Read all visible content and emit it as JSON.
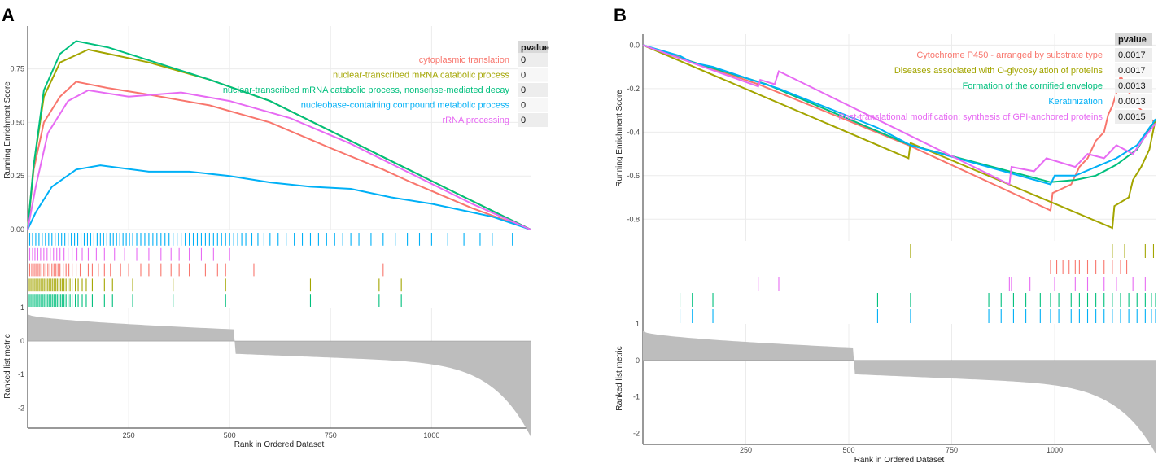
{
  "figure": {
    "panel_labels": [
      "A",
      "B"
    ]
  },
  "chart_data": [
    {
      "panel": "A",
      "type": "line",
      "title": "",
      "xlabel": "Rank in Ordered Dataset",
      "ylabel_top": "Running Enrichment Score",
      "ylabel_bottom": "Ranked list metric",
      "xlim": [
        0,
        1245
      ],
      "x_ticks": [
        "250",
        "500",
        "750",
        "1000"
      ],
      "x_tick_values": [
        250,
        500,
        750,
        1000
      ],
      "ylim_top": [
        0,
        0.95
      ],
      "y_ticks_top": [
        "0.00",
        "0.25",
        "0.50",
        "0.75"
      ],
      "y_tick_values_top": [
        0,
        0.25,
        0.5,
        0.75
      ],
      "ylim_bottom": [
        -2.6,
        1.0
      ],
      "y_ticks_bottom": [
        "1",
        "0",
        "-1",
        "-2"
      ],
      "y_tick_values_bottom": [
        1,
        0,
        -1,
        -2
      ],
      "pvalue_header": "pvalue",
      "series": [
        {
          "name": "cytoplasmic translation",
          "color": "#F8766D",
          "pvalue": "0",
          "points": [
            [
              0,
              0
            ],
            [
              15,
              0.28
            ],
            [
              40,
              0.5
            ],
            [
              80,
              0.62
            ],
            [
              120,
              0.69
            ],
            [
              200,
              0.66
            ],
            [
              300,
              0.63
            ],
            [
              450,
              0.58
            ],
            [
              600,
              0.5
            ],
            [
              750,
              0.38
            ],
            [
              880,
              0.28
            ],
            [
              950,
              0.22
            ],
            [
              1100,
              0.1
            ],
            [
              1245,
              0
            ]
          ],
          "hits": [
            5,
            10,
            14,
            18,
            22,
            26,
            30,
            35,
            40,
            45,
            50,
            55,
            60,
            65,
            70,
            75,
            80,
            88,
            95,
            102,
            110,
            120,
            130,
            150,
            160,
            175,
            190,
            205,
            230,
            250,
            280,
            300,
            330,
            355,
            375,
            400,
            440,
            470,
            490,
            560,
            880
          ]
        },
        {
          "name": "nuclear-transcribed mRNA catabolic process",
          "color": "#A3A500",
          "pvalue": "0",
          "points": [
            [
              0,
              0
            ],
            [
              15,
              0.3
            ],
            [
              40,
              0.62
            ],
            [
              80,
              0.78
            ],
            [
              150,
              0.84
            ],
            [
              300,
              0.78
            ],
            [
              450,
              0.7
            ],
            [
              600,
              0.6
            ],
            [
              750,
              0.46
            ],
            [
              900,
              0.32
            ],
            [
              1050,
              0.18
            ],
            [
              1245,
              0
            ]
          ],
          "hits": [
            2,
            6,
            10,
            14,
            18,
            22,
            26,
            30,
            34,
            38,
            42,
            46,
            50,
            54,
            58,
            62,
            66,
            70,
            74,
            78,
            82,
            86,
            90,
            95,
            100,
            105,
            110,
            118,
            125,
            135,
            145,
            160,
            190,
            210,
            260,
            360,
            490,
            700,
            870,
            925
          ]
        },
        {
          "name": "nuclear-transcribed mRNA catabolic process, nonsense-mediated decay",
          "color": "#00BF7D",
          "pvalue": "0",
          "points": [
            [
              0,
              0
            ],
            [
              15,
              0.3
            ],
            [
              40,
              0.65
            ],
            [
              80,
              0.82
            ],
            [
              120,
              0.88
            ],
            [
              200,
              0.85
            ],
            [
              300,
              0.79
            ],
            [
              450,
              0.7
            ],
            [
              600,
              0.6
            ],
            [
              750,
              0.46
            ],
            [
              900,
              0.32
            ],
            [
              1050,
              0.18
            ],
            [
              1245,
              0
            ]
          ],
          "hits": [
            2,
            6,
            10,
            14,
            18,
            22,
            26,
            30,
            34,
            38,
            42,
            46,
            50,
            54,
            58,
            62,
            66,
            70,
            74,
            78,
            82,
            86,
            90,
            95,
            100,
            105,
            110,
            118,
            125,
            135,
            145,
            160,
            190,
            210,
            260,
            360,
            490,
            700,
            870,
            925
          ]
        },
        {
          "name": "nucleobase-containing compound metabolic process",
          "color": "#00B0F6",
          "pvalue": "0",
          "points": [
            [
              0,
              0
            ],
            [
              20,
              0.08
            ],
            [
              60,
              0.2
            ],
            [
              120,
              0.28
            ],
            [
              180,
              0.3
            ],
            [
              300,
              0.27
            ],
            [
              400,
              0.27
            ],
            [
              500,
              0.25
            ],
            [
              600,
              0.22
            ],
            [
              700,
              0.2
            ],
            [
              800,
              0.19
            ],
            [
              900,
              0.15
            ],
            [
              1000,
              0.12
            ],
            [
              1100,
              0.08
            ],
            [
              1150,
              0.06
            ],
            [
              1245,
              0
            ]
          ],
          "hits": [
            5,
            12,
            20,
            28,
            36,
            44,
            52,
            60,
            68,
            76,
            84,
            92,
            100,
            108,
            116,
            124,
            132,
            140,
            148,
            156,
            164,
            172,
            180,
            188,
            196,
            204,
            212,
            220,
            228,
            236,
            244,
            252,
            260,
            270,
            280,
            290,
            300,
            310,
            320,
            330,
            340,
            350,
            360,
            370,
            380,
            390,
            400,
            410,
            420,
            430,
            440,
            450,
            460,
            470,
            480,
            490,
            500,
            510,
            520,
            530,
            540,
            555,
            570,
            585,
            600,
            620,
            640,
            660,
            680,
            700,
            720,
            740,
            760,
            780,
            800,
            820,
            850,
            880,
            910,
            940,
            970,
            1000,
            1040,
            1080,
            1120,
            1150,
            1200
          ]
        },
        {
          "name": "rRNA processing",
          "color": "#E76BF3",
          "pvalue": "0",
          "points": [
            [
              0,
              0
            ],
            [
              20,
              0.2
            ],
            [
              50,
              0.45
            ],
            [
              100,
              0.6
            ],
            [
              150,
              0.65
            ],
            [
              250,
              0.62
            ],
            [
              380,
              0.64
            ],
            [
              500,
              0.6
            ],
            [
              650,
              0.52
            ],
            [
              800,
              0.4
            ],
            [
              950,
              0.26
            ],
            [
              1100,
              0.12
            ],
            [
              1245,
              0
            ]
          ],
          "hits": [
            5,
            12,
            18,
            25,
            32,
            40,
            48,
            56,
            64,
            72,
            80,
            90,
            100,
            110,
            122,
            135,
            150,
            170,
            190,
            215,
            240,
            270,
            300,
            330,
            355,
            375,
            400,
            430,
            460,
            500
          ]
        }
      ],
      "ranked_metric": {
        "start": 0.8,
        "pre_split": 0.35,
        "post_split": -0.38,
        "split_x": 515,
        "end": -2.5
      }
    },
    {
      "panel": "B",
      "type": "line",
      "title": "",
      "xlabel": "Rank in Ordered Dataset",
      "ylabel_top": "Running Enrichment Score",
      "ylabel_bottom": "Ranked list metric",
      "xlim": [
        0,
        1245
      ],
      "x_ticks": [
        "250",
        "500",
        "750",
        "1000"
      ],
      "x_tick_values": [
        250,
        500,
        750,
        1000
      ],
      "ylim_top": [
        -0.9,
        0.05
      ],
      "y_ticks_top": [
        "0.0",
        "-0.2",
        "-0.4",
        "-0.6",
        "-0.8"
      ],
      "y_tick_values_top": [
        0,
        -0.2,
        -0.4,
        -0.6,
        -0.8
      ],
      "ylim_bottom": [
        -2.3,
        1.0
      ],
      "y_ticks_bottom": [
        "1",
        "0",
        "-1",
        "-2"
      ],
      "y_tick_values_bottom": [
        1,
        0,
        -1,
        -2
      ],
      "pvalue_header": "pvalue",
      "series": [
        {
          "name": "Cytochrome P450 - arranged by substrate type",
          "color": "#F8766D",
          "pvalue": "0.0017",
          "points": [
            [
              0,
              0
            ],
            [
              280,
              -0.18
            ],
            [
              645,
              -0.46
            ],
            [
              990,
              -0.76
            ],
            [
              995,
              -0.68
            ],
            [
              1040,
              -0.64
            ],
            [
              1060,
              -0.56
            ],
            [
              1080,
              -0.52
            ],
            [
              1100,
              -0.44
            ],
            [
              1120,
              -0.4
            ],
            [
              1130,
              -0.32
            ],
            [
              1140,
              -0.28
            ],
            [
              1150,
              -0.22
            ],
            [
              1160,
              -0.14
            ],
            [
              1175,
              -0.2
            ],
            [
              1200,
              -0.28
            ],
            [
              1245,
              -0.36
            ]
          ],
          "hits": [
            990,
            1005,
            1020,
            1035,
            1050,
            1060,
            1080,
            1100,
            1120,
            1140,
            1160,
            1175
          ]
        },
        {
          "name": "Diseases associated with O-glycosylation of proteins",
          "color": "#A3A500",
          "pvalue": "0.0017",
          "points": [
            [
              0,
              0
            ],
            [
              645,
              -0.52
            ],
            [
              650,
              -0.45
            ],
            [
              1140,
              -0.84
            ],
            [
              1145,
              -0.74
            ],
            [
              1180,
              -0.7
            ],
            [
              1190,
              -0.62
            ],
            [
              1210,
              -0.56
            ],
            [
              1230,
              -0.48
            ],
            [
              1245,
              -0.34
            ]
          ],
          "hits": [
            650,
            1140,
            1170,
            1220,
            1240
          ]
        },
        {
          "name": "Formation of the cornified envelope",
          "color": "#00BF7D",
          "pvalue": "0.0013",
          "points": [
            [
              0,
              0
            ],
            [
              90,
              -0.06
            ],
            [
              300,
              -0.18
            ],
            [
              650,
              -0.46
            ],
            [
              990,
              -0.63
            ],
            [
              1050,
              -0.62
            ],
            [
              1100,
              -0.6
            ],
            [
              1150,
              -0.55
            ],
            [
              1200,
              -0.48
            ],
            [
              1245,
              -0.34
            ]
          ],
          "hits": [
            90,
            120,
            170,
            570,
            650,
            840,
            870,
            900,
            930,
            965,
            990,
            1010,
            1040,
            1060,
            1080,
            1100,
            1120,
            1140,
            1160,
            1180,
            1200,
            1220,
            1235,
            1245
          ]
        },
        {
          "name": "Keratinization",
          "color": "#00B0F6",
          "pvalue": "0.0013",
          "points": [
            [
              0,
              0
            ],
            [
              90,
              -0.05
            ],
            [
              120,
              -0.08
            ],
            [
              170,
              -0.1
            ],
            [
              280,
              -0.17
            ],
            [
              330,
              -0.2
            ],
            [
              570,
              -0.38
            ],
            [
              650,
              -0.46
            ],
            [
              990,
              -0.64
            ],
            [
              1000,
              -0.6
            ],
            [
              1050,
              -0.6
            ],
            [
              1100,
              -0.56
            ],
            [
              1150,
              -0.52
            ],
            [
              1200,
              -0.46
            ],
            [
              1245,
              -0.34
            ]
          ],
          "hits": [
            90,
            120,
            170,
            570,
            650,
            840,
            870,
            900,
            930,
            965,
            990,
            1010,
            1040,
            1060,
            1080,
            1100,
            1120,
            1140,
            1160,
            1180,
            1200,
            1220,
            1235,
            1245
          ]
        },
        {
          "name": "Post-translational modification: synthesis of GPI-anchored proteins",
          "color": "#E76BF3",
          "pvalue": "0.0015",
          "points": [
            [
              0,
              0
            ],
            [
              280,
              -0.19
            ],
            [
              285,
              -0.16
            ],
            [
              320,
              -0.18
            ],
            [
              330,
              -0.12
            ],
            [
              890,
              -0.64
            ],
            [
              895,
              -0.56
            ],
            [
              950,
              -0.58
            ],
            [
              980,
              -0.52
            ],
            [
              1050,
              -0.56
            ],
            [
              1080,
              -0.5
            ],
            [
              1120,
              -0.52
            ],
            [
              1150,
              -0.46
            ],
            [
              1190,
              -0.5
            ],
            [
              1220,
              -0.42
            ],
            [
              1245,
              -0.36
            ]
          ],
          "hits": [
            280,
            330,
            890,
            895,
            940,
            1000,
            1050,
            1080,
            1120,
            1150,
            1190,
            1220
          ]
        }
      ],
      "ranked_metric": {
        "start": 0.8,
        "pre_split": 0.35,
        "post_split": -0.38,
        "split_x": 515,
        "end": -2.2
      }
    }
  ]
}
